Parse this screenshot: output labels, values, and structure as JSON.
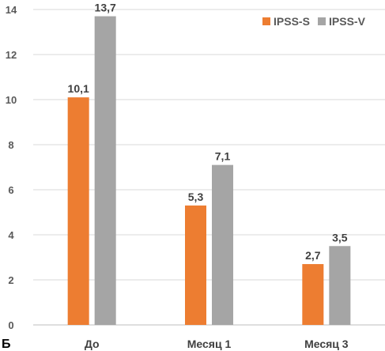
{
  "panel_label": "Б",
  "chart_data": {
    "type": "bar",
    "categories": [
      "До",
      "Месяц 1",
      "Месяц 3"
    ],
    "series": [
      {
        "name": "IPSS-S",
        "values": [
          10.1,
          5.3,
          2.7
        ],
        "labels": [
          "10,1",
          "5,3",
          "2,7"
        ],
        "color": "#ED7D31"
      },
      {
        "name": "IPSS-V",
        "values": [
          13.7,
          7.1,
          3.5
        ],
        "labels": [
          "13,7",
          "7,1",
          "3,5"
        ],
        "color": "#A5A5A5"
      }
    ],
    "ylim": [
      0,
      14
    ],
    "yticks": [
      0,
      2,
      4,
      6,
      8,
      10,
      12,
      14
    ],
    "grid": true,
    "legend": "top-right",
    "title": "",
    "xlabel": "",
    "ylabel": ""
  }
}
